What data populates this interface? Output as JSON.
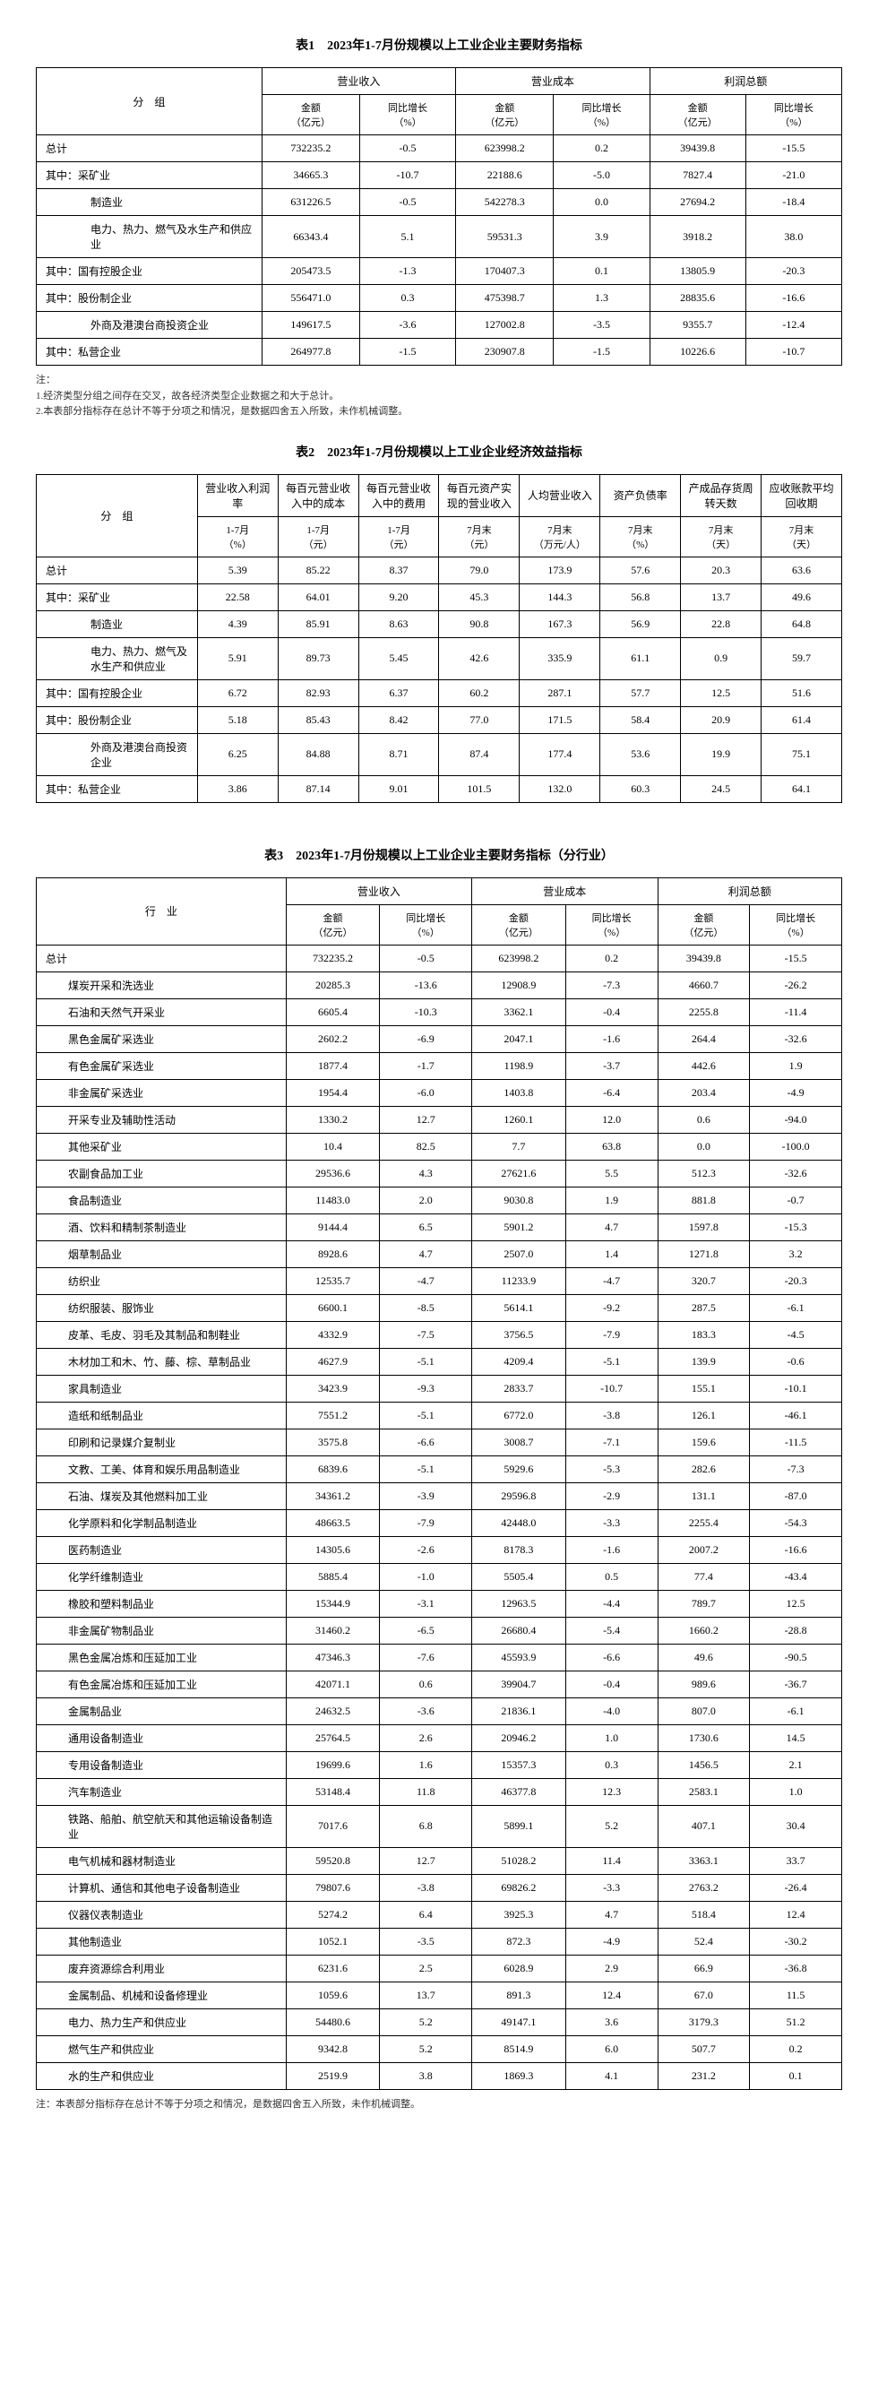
{
  "table1": {
    "title": "表1　2023年1-7月份规模以上工业企业主要财务指标",
    "group_header": "分　组",
    "col_groups": [
      "营业收入",
      "营业成本",
      "利润总额"
    ],
    "sub_cols": [
      "金额\n（亿元）",
      "同比增长\n（%）"
    ],
    "rows": [
      {
        "label": "总计",
        "indent": 0,
        "v": [
          "732235.2",
          "-0.5",
          "623998.2",
          "0.2",
          "39439.8",
          "-15.5"
        ]
      },
      {
        "label": "其中：采矿业",
        "indent": 0,
        "v": [
          "34665.3",
          "-10.7",
          "22188.6",
          "-5.0",
          "7827.4",
          "-21.0"
        ]
      },
      {
        "label": "制造业",
        "indent": 2,
        "v": [
          "631226.5",
          "-0.5",
          "542278.3",
          "0.0",
          "27694.2",
          "-18.4"
        ]
      },
      {
        "label": "电力、热力、燃气及水生产和供应业",
        "indent": 2,
        "v": [
          "66343.4",
          "5.1",
          "59531.3",
          "3.9",
          "3918.2",
          "38.0"
        ]
      },
      {
        "label": "其中：国有控股企业",
        "indent": 0,
        "v": [
          "205473.5",
          "-1.3",
          "170407.3",
          "0.1",
          "13805.9",
          "-20.3"
        ]
      },
      {
        "label": "其中：股份制企业",
        "indent": 0,
        "v": [
          "556471.0",
          "0.3",
          "475398.7",
          "1.3",
          "28835.6",
          "-16.6"
        ]
      },
      {
        "label": "外商及港澳台商投资企业",
        "indent": 2,
        "v": [
          "149617.5",
          "-3.6",
          "127002.8",
          "-3.5",
          "9355.7",
          "-12.4"
        ]
      },
      {
        "label": "其中：私营企业",
        "indent": 0,
        "v": [
          "264977.8",
          "-1.5",
          "230907.8",
          "-1.5",
          "10226.6",
          "-10.7"
        ]
      }
    ],
    "footnote": "注：\n1.经济类型分组之间存在交叉，故各经济类型企业数据之和大于总计。\n2.本表部分指标存在总计不等于分项之和情况，是数据四舍五入所致，未作机械调整。"
  },
  "table2": {
    "title": "表2　2023年1-7月份规模以上工业企业经济效益指标",
    "group_header": "分　组",
    "cols": [
      "营业收入利润率",
      "每百元营业收入中的成本",
      "每百元营业收入中的费用",
      "每百元资产实现的营业收入",
      "人均营业收入",
      "资产负债率",
      "产成品存货周转天数",
      "应收账款平均回收期"
    ],
    "sub_cols": [
      "1-7月\n（%）",
      "1-7月\n（元）",
      "1-7月\n（元）",
      "7月末\n（元）",
      "7月末\n（万元/人）",
      "7月末\n（%）",
      "7月末\n（天）",
      "7月末\n（天）"
    ],
    "rows": [
      {
        "label": "总计",
        "indent": 0,
        "v": [
          "5.39",
          "85.22",
          "8.37",
          "79.0",
          "173.9",
          "57.6",
          "20.3",
          "63.6"
        ]
      },
      {
        "label": "其中：采矿业",
        "indent": 0,
        "v": [
          "22.58",
          "64.01",
          "9.20",
          "45.3",
          "144.3",
          "56.8",
          "13.7",
          "49.6"
        ]
      },
      {
        "label": "制造业",
        "indent": 2,
        "v": [
          "4.39",
          "85.91",
          "8.63",
          "90.8",
          "167.3",
          "56.9",
          "22.8",
          "64.8"
        ]
      },
      {
        "label": "电力、热力、燃气及水生产和供应业",
        "indent": 2,
        "v": [
          "5.91",
          "89.73",
          "5.45",
          "42.6",
          "335.9",
          "61.1",
          "0.9",
          "59.7"
        ]
      },
      {
        "label": "其中：国有控股企业",
        "indent": 0,
        "v": [
          "6.72",
          "82.93",
          "6.37",
          "60.2",
          "287.1",
          "57.7",
          "12.5",
          "51.6"
        ]
      },
      {
        "label": "其中：股份制企业",
        "indent": 0,
        "v": [
          "5.18",
          "85.43",
          "8.42",
          "77.0",
          "171.5",
          "58.4",
          "20.9",
          "61.4"
        ]
      },
      {
        "label": "外商及港澳台商投资企业",
        "indent": 2,
        "v": [
          "6.25",
          "84.88",
          "8.71",
          "87.4",
          "177.4",
          "53.6",
          "19.9",
          "75.1"
        ]
      },
      {
        "label": "其中：私营企业",
        "indent": 0,
        "v": [
          "3.86",
          "87.14",
          "9.01",
          "101.5",
          "132.0",
          "60.3",
          "24.5",
          "64.1"
        ]
      }
    ]
  },
  "table3": {
    "title": "表3　2023年1-7月份规模以上工业企业主要财务指标（分行业）",
    "group_header": "行　业",
    "col_groups": [
      "营业收入",
      "营业成本",
      "利润总额"
    ],
    "sub_cols": [
      "金额\n（亿元）",
      "同比增长\n（%）"
    ],
    "rows": [
      {
        "label": "总计",
        "indent": 0,
        "v": [
          "732235.2",
          "-0.5",
          "623998.2",
          "0.2",
          "39439.8",
          "-15.5"
        ]
      },
      {
        "label": "煤炭开采和洗选业",
        "indent": 1,
        "v": [
          "20285.3",
          "-13.6",
          "12908.9",
          "-7.3",
          "4660.7",
          "-26.2"
        ]
      },
      {
        "label": "石油和天然气开采业",
        "indent": 1,
        "v": [
          "6605.4",
          "-10.3",
          "3362.1",
          "-0.4",
          "2255.8",
          "-11.4"
        ]
      },
      {
        "label": "黑色金属矿采选业",
        "indent": 1,
        "v": [
          "2602.2",
          "-6.9",
          "2047.1",
          "-1.6",
          "264.4",
          "-32.6"
        ]
      },
      {
        "label": "有色金属矿采选业",
        "indent": 1,
        "v": [
          "1877.4",
          "-1.7",
          "1198.9",
          "-3.7",
          "442.6",
          "1.9"
        ]
      },
      {
        "label": "非金属矿采选业",
        "indent": 1,
        "v": [
          "1954.4",
          "-6.0",
          "1403.8",
          "-6.4",
          "203.4",
          "-4.9"
        ]
      },
      {
        "label": "开采专业及辅助性活动",
        "indent": 1,
        "v": [
          "1330.2",
          "12.7",
          "1260.1",
          "12.0",
          "0.6",
          "-94.0"
        ]
      },
      {
        "label": "其他采矿业",
        "indent": 1,
        "v": [
          "10.4",
          "82.5",
          "7.7",
          "63.8",
          "0.0",
          "-100.0"
        ]
      },
      {
        "label": "农副食品加工业",
        "indent": 1,
        "v": [
          "29536.6",
          "4.3",
          "27621.6",
          "5.5",
          "512.3",
          "-32.6"
        ]
      },
      {
        "label": "食品制造业",
        "indent": 1,
        "v": [
          "11483.0",
          "2.0",
          "9030.8",
          "1.9",
          "881.8",
          "-0.7"
        ]
      },
      {
        "label": "酒、饮料和精制茶制造业",
        "indent": 1,
        "v": [
          "9144.4",
          "6.5",
          "5901.2",
          "4.7",
          "1597.8",
          "-15.3"
        ]
      },
      {
        "label": "烟草制品业",
        "indent": 1,
        "v": [
          "8928.6",
          "4.7",
          "2507.0",
          "1.4",
          "1271.8",
          "3.2"
        ]
      },
      {
        "label": "纺织业",
        "indent": 1,
        "v": [
          "12535.7",
          "-4.7",
          "11233.9",
          "-4.7",
          "320.7",
          "-20.3"
        ]
      },
      {
        "label": "纺织服装、服饰业",
        "indent": 1,
        "v": [
          "6600.1",
          "-8.5",
          "5614.1",
          "-9.2",
          "287.5",
          "-6.1"
        ]
      },
      {
        "label": "皮革、毛皮、羽毛及其制品和制鞋业",
        "indent": 1,
        "v": [
          "4332.9",
          "-7.5",
          "3756.5",
          "-7.9",
          "183.3",
          "-4.5"
        ]
      },
      {
        "label": "木材加工和木、竹、藤、棕、草制品业",
        "indent": 1,
        "v": [
          "4627.9",
          "-5.1",
          "4209.4",
          "-5.1",
          "139.9",
          "-0.6"
        ]
      },
      {
        "label": "家具制造业",
        "indent": 1,
        "v": [
          "3423.9",
          "-9.3",
          "2833.7",
          "-10.7",
          "155.1",
          "-10.1"
        ]
      },
      {
        "label": "造纸和纸制品业",
        "indent": 1,
        "v": [
          "7551.2",
          "-5.1",
          "6772.0",
          "-3.8",
          "126.1",
          "-46.1"
        ]
      },
      {
        "label": "印刷和记录媒介复制业",
        "indent": 1,
        "v": [
          "3575.8",
          "-6.6",
          "3008.7",
          "-7.1",
          "159.6",
          "-11.5"
        ]
      },
      {
        "label": "文教、工美、体育和娱乐用品制造业",
        "indent": 1,
        "v": [
          "6839.6",
          "-5.1",
          "5929.6",
          "-5.3",
          "282.6",
          "-7.3"
        ]
      },
      {
        "label": "石油、煤炭及其他燃料加工业",
        "indent": 1,
        "v": [
          "34361.2",
          "-3.9",
          "29596.8",
          "-2.9",
          "131.1",
          "-87.0"
        ]
      },
      {
        "label": "化学原料和化学制品制造业",
        "indent": 1,
        "v": [
          "48663.5",
          "-7.9",
          "42448.0",
          "-3.3",
          "2255.4",
          "-54.3"
        ]
      },
      {
        "label": "医药制造业",
        "indent": 1,
        "v": [
          "14305.6",
          "-2.6",
          "8178.3",
          "-1.6",
          "2007.2",
          "-16.6"
        ]
      },
      {
        "label": "化学纤维制造业",
        "indent": 1,
        "v": [
          "5885.4",
          "-1.0",
          "5505.4",
          "0.5",
          "77.4",
          "-43.4"
        ]
      },
      {
        "label": "橡胶和塑料制品业",
        "indent": 1,
        "v": [
          "15344.9",
          "-3.1",
          "12963.5",
          "-4.4",
          "789.7",
          "12.5"
        ]
      },
      {
        "label": "非金属矿物制品业",
        "indent": 1,
        "v": [
          "31460.2",
          "-6.5",
          "26680.4",
          "-5.4",
          "1660.2",
          "-28.8"
        ]
      },
      {
        "label": "黑色金属冶炼和压延加工业",
        "indent": 1,
        "v": [
          "47346.3",
          "-7.6",
          "45593.9",
          "-6.6",
          "49.6",
          "-90.5"
        ]
      },
      {
        "label": "有色金属冶炼和压延加工业",
        "indent": 1,
        "v": [
          "42071.1",
          "0.6",
          "39904.7",
          "-0.4",
          "989.6",
          "-36.7"
        ]
      },
      {
        "label": "金属制品业",
        "indent": 1,
        "v": [
          "24632.5",
          "-3.6",
          "21836.1",
          "-4.0",
          "807.0",
          "-6.1"
        ]
      },
      {
        "label": "通用设备制造业",
        "indent": 1,
        "v": [
          "25764.5",
          "2.6",
          "20946.2",
          "1.0",
          "1730.6",
          "14.5"
        ]
      },
      {
        "label": "专用设备制造业",
        "indent": 1,
        "v": [
          "19699.6",
          "1.6",
          "15357.3",
          "0.3",
          "1456.5",
          "2.1"
        ]
      },
      {
        "label": "汽车制造业",
        "indent": 1,
        "v": [
          "53148.4",
          "11.8",
          "46377.8",
          "12.3",
          "2583.1",
          "1.0"
        ]
      },
      {
        "label": "铁路、船舶、航空航天和其他运输设备制造业",
        "indent": 1,
        "v": [
          "7017.6",
          "6.8",
          "5899.1",
          "5.2",
          "407.1",
          "30.4"
        ]
      },
      {
        "label": "电气机械和器材制造业",
        "indent": 1,
        "v": [
          "59520.8",
          "12.7",
          "51028.2",
          "11.4",
          "3363.1",
          "33.7"
        ]
      },
      {
        "label": "计算机、通信和其他电子设备制造业",
        "indent": 1,
        "v": [
          "79807.6",
          "-3.8",
          "69826.2",
          "-3.3",
          "2763.2",
          "-26.4"
        ]
      },
      {
        "label": "仪器仪表制造业",
        "indent": 1,
        "v": [
          "5274.2",
          "6.4",
          "3925.3",
          "4.7",
          "518.4",
          "12.4"
        ]
      },
      {
        "label": "其他制造业",
        "indent": 1,
        "v": [
          "1052.1",
          "-3.5",
          "872.3",
          "-4.9",
          "52.4",
          "-30.2"
        ]
      },
      {
        "label": "废弃资源综合利用业",
        "indent": 1,
        "v": [
          "6231.6",
          "2.5",
          "6028.9",
          "2.9",
          "66.9",
          "-36.8"
        ]
      },
      {
        "label": "金属制品、机械和设备修理业",
        "indent": 1,
        "v": [
          "1059.6",
          "13.7",
          "891.3",
          "12.4",
          "67.0",
          "11.5"
        ]
      },
      {
        "label": "电力、热力生产和供应业",
        "indent": 1,
        "v": [
          "54480.6",
          "5.2",
          "49147.1",
          "3.6",
          "3179.3",
          "51.2"
        ]
      },
      {
        "label": "燃气生产和供应业",
        "indent": 1,
        "v": [
          "9342.8",
          "5.2",
          "8514.9",
          "6.0",
          "507.7",
          "0.2"
        ]
      },
      {
        "label": "水的生产和供应业",
        "indent": 1,
        "v": [
          "2519.9",
          "3.8",
          "1869.3",
          "4.1",
          "231.2",
          "0.1"
        ]
      }
    ],
    "footnote": "注：本表部分指标存在总计不等于分项之和情况，是数据四舍五入所致，未作机械调整。"
  }
}
